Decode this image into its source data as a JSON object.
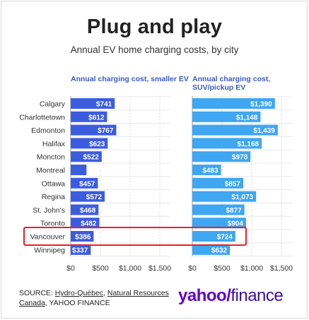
{
  "title": "Plug and play",
  "subtitle": "Annual EV home charging costs, by city",
  "source": {
    "prefix": "SOURCE: ",
    "link1": "Hydro-Québec",
    "sep": ", ",
    "link2a": "Natural Resources",
    "link2b": "Canada",
    "suffix": ", YAHOO FINANCE"
  },
  "logo": {
    "part1": "yahoo",
    "slash": "/",
    "part2": "finance"
  },
  "colors": {
    "small_ev_bar": "#3c5ce0",
    "suv_bar": "#3ea6f2",
    "highlight_box": "#e8202a",
    "logo": "#5f01d1"
  },
  "highlight": "Vancouver",
  "chart_data": [
    {
      "type": "bar",
      "orientation": "horizontal",
      "title": "Annual charging cost, smaller EV",
      "categories": [
        "Calgary",
        "Charlottetown",
        "Edmonton",
        "Halifax",
        "Moncton",
        "Montreal",
        "Ottawa",
        "Regina",
        "St. John's",
        "Toronto",
        "Vancouver",
        "Winnipeg"
      ],
      "values": [
        741,
        612,
        767,
        623,
        522,
        266,
        457,
        572,
        468,
        482,
        386,
        337
      ],
      "labels": [
        "$741",
        "$612",
        "$767",
        "$623",
        "$522",
        "",
        "$457",
        "$572",
        "$468",
        "$482",
        "$386",
        "$337"
      ],
      "xlim": [
        0,
        1800
      ],
      "xticks": [
        0,
        500,
        1000,
        1500
      ],
      "xtick_labels": [
        "$0",
        "$500",
        "$1,000",
        "$1,500"
      ],
      "grid": "vertical"
    },
    {
      "type": "bar",
      "orientation": "horizontal",
      "title": "Annual charging cost, SUV/pickup EV",
      "categories": [
        "Calgary",
        "Charlottetown",
        "Edmonton",
        "Halifax",
        "Moncton",
        "Montreal",
        "Ottawa",
        "Regina",
        "St. John's",
        "Toronto",
        "Vancouver",
        "Winnipeg"
      ],
      "values": [
        1390,
        1148,
        1439,
        1168,
        978,
        483,
        857,
        1073,
        877,
        904,
        724,
        632
      ],
      "labels": [
        "$1,390",
        "$1,148",
        "$1,439",
        "$1,168",
        "$978",
        "$483",
        "$857",
        "$1,073",
        "$877",
        "$904",
        "$724",
        "$632"
      ],
      "xlim": [
        0,
        1800
      ],
      "xticks": [
        0,
        500,
        1000,
        1500
      ],
      "xtick_labels": [
        "$0",
        "$500",
        "$1,000",
        "$1,500"
      ],
      "grid": "vertical"
    }
  ]
}
